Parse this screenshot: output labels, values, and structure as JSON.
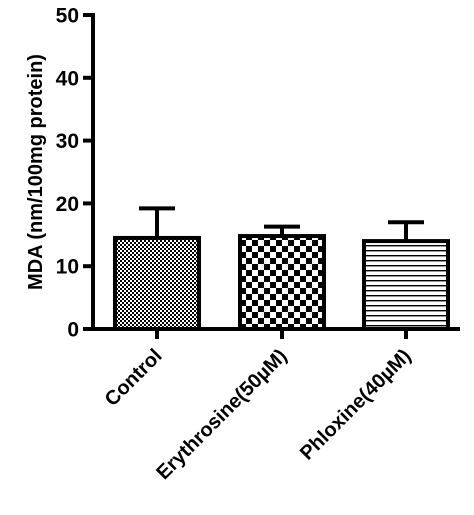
{
  "chart_data": {
    "type": "bar",
    "title": "",
    "xlabel": "",
    "ylabel": "MDA (nm/100mg protein)",
    "ylim": [
      0,
      50
    ],
    "yticks": [
      0,
      10,
      20,
      30,
      40,
      50
    ],
    "categories": [
      "Control",
      "Erythrosine(50µM)",
      "Phloxine(40µM)"
    ],
    "series": [
      {
        "values": [
          14.5,
          14.8,
          14.0
        ],
        "errors": [
          4.7,
          1.5,
          3.0
        ]
      }
    ],
    "bar_patterns": [
      "fine-checker",
      "checker",
      "horizontal-stripes"
    ],
    "grid": false,
    "legend": "none"
  }
}
